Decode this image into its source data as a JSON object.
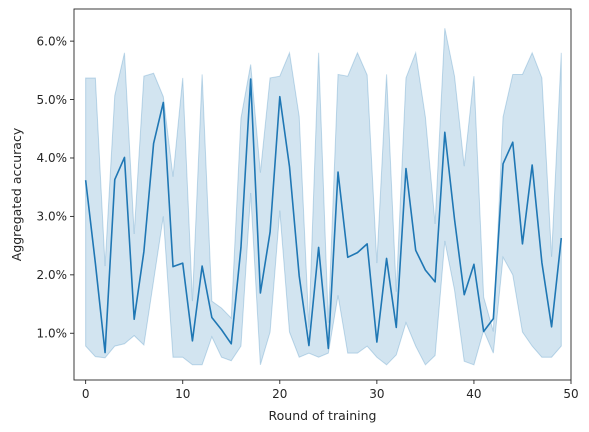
{
  "chart_data": {
    "type": "line",
    "title": "",
    "xlabel": "Round of training",
    "ylabel": "Aggregated accuracy",
    "xlim": [
      -1.2,
      50
    ],
    "ylim": [
      0.2,
      6.55
    ],
    "x_ticks": [
      0,
      10,
      20,
      30,
      40,
      50
    ],
    "y_ticks": [
      1.0,
      2.0,
      3.0,
      4.0,
      5.0,
      6.0
    ],
    "y_tick_format": "percent_1dp",
    "grid": false,
    "colors": {
      "line": "#1f77b4",
      "band": "#1f77b4",
      "axes": "#262626"
    },
    "series": [
      {
        "x": [
          0,
          1,
          2,
          3,
          4,
          5,
          6,
          7,
          8,
          9,
          10,
          11,
          12,
          13,
          14,
          15,
          16,
          17,
          18,
          19,
          20,
          21,
          22,
          23,
          24,
          25,
          26,
          27,
          28,
          29,
          30,
          31,
          32,
          33,
          34,
          35,
          36,
          37,
          38,
          39,
          40,
          41,
          42,
          43,
          44,
          45,
          46,
          47,
          48,
          49
        ],
        "y": [
          3.62,
          2.2,
          0.67,
          3.63,
          4.01,
          1.24,
          2.4,
          4.25,
          4.95,
          2.14,
          2.2,
          0.87,
          2.15,
          1.27,
          1.06,
          0.82,
          2.47,
          5.35,
          1.69,
          2.73,
          5.05,
          3.85,
          1.98,
          0.79,
          2.47,
          0.74,
          3.76,
          2.3,
          2.38,
          2.53,
          0.85,
          2.28,
          1.1,
          3.82,
          2.42,
          2.08,
          1.88,
          4.44,
          2.95,
          1.66,
          2.18,
          1.03,
          1.25,
          3.9,
          4.27,
          2.53,
          3.88,
          2.21,
          1.11,
          2.63
        ],
        "lower": [
          0.78,
          0.6,
          0.58,
          0.78,
          0.82,
          0.96,
          0.8,
          1.9,
          3.0,
          0.59,
          0.59,
          0.46,
          0.46,
          0.94,
          0.59,
          0.53,
          0.78,
          3.4,
          0.46,
          1.02,
          3.1,
          1.02,
          0.59,
          0.66,
          0.59,
          0.66,
          1.65,
          0.66,
          0.66,
          0.78,
          0.59,
          0.46,
          0.63,
          1.18,
          0.78,
          0.46,
          0.62,
          2.58,
          1.74,
          0.52,
          0.46,
          1.05,
          0.66,
          2.3,
          2.0,
          1.02,
          0.78,
          0.59,
          0.59,
          0.78
        ],
        "upper": [
          5.37,
          5.37,
          2.15,
          5.07,
          5.8,
          2.7,
          5.4,
          5.45,
          5.05,
          3.68,
          5.37,
          1.55,
          5.43,
          1.55,
          1.43,
          1.26,
          4.68,
          5.6,
          3.75,
          5.37,
          5.4,
          5.8,
          4.71,
          1.1,
          5.8,
          1.18,
          5.43,
          5.4,
          5.8,
          5.42,
          2.2,
          5.43,
          1.71,
          5.37,
          5.8,
          4.7,
          2.87,
          6.22,
          5.4,
          3.86,
          5.4,
          1.62,
          1.03,
          4.7,
          5.43,
          5.43,
          5.8,
          5.37,
          2.31,
          5.8
        ]
      }
    ]
  }
}
